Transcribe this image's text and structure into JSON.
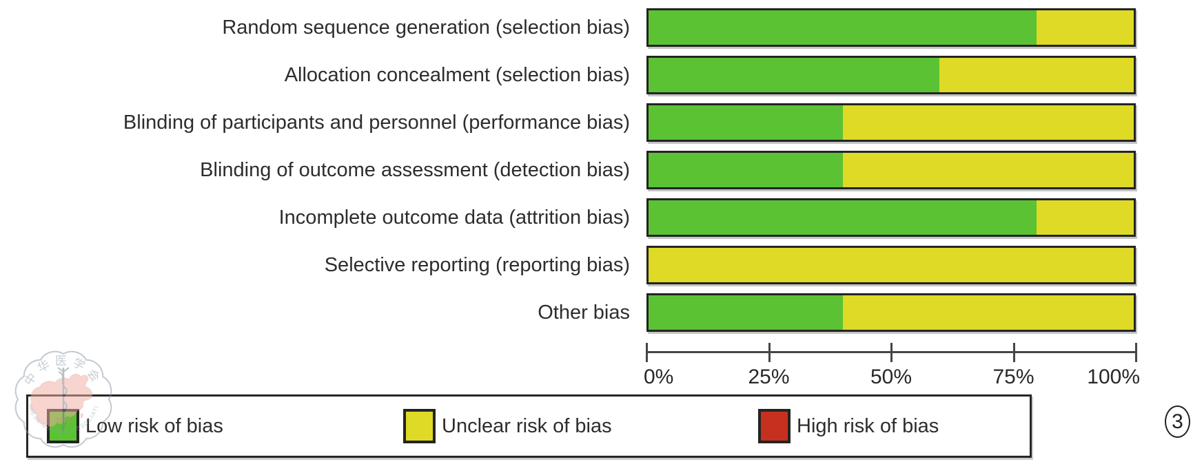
{
  "figure": {
    "number": "3",
    "watermark": {
      "top_text": "中华医学会",
      "bottom_text": "CHINESE MEDICAL ASSOCIATION",
      "year": "1915"
    }
  },
  "chart_data": {
    "type": "bar",
    "orientation": "horizontal-stacked",
    "unit": "percent",
    "xlim": [
      0,
      100
    ],
    "x_ticks": [
      "0%",
      "25%",
      "50%",
      "75%",
      "100%"
    ],
    "grid": false,
    "legend_position": "bottom",
    "categories": [
      "Random sequence generation (selection bias)",
      "Allocation concealment (selection bias)",
      "Blinding of participants and personnel (performance bias)",
      "Blinding of outcome assessment (detection bias)",
      "Incomplete outcome data (attrition bias)",
      "Selective reporting (reporting bias)",
      "Other bias"
    ],
    "series": [
      {
        "name": "Low risk of bias",
        "color": "#5BC234",
        "values": [
          80,
          60,
          40,
          40,
          80,
          0,
          40
        ]
      },
      {
        "name": "Unclear risk of bias",
        "color": "#DEDA26",
        "values": [
          20,
          40,
          60,
          60,
          20,
          100,
          60
        ]
      },
      {
        "name": "High risk of bias",
        "color": "#C6311F",
        "values": [
          0,
          0,
          0,
          0,
          0,
          0,
          0
        ]
      }
    ],
    "legend": [
      {
        "label": "Low risk of bias",
        "color": "#5BC234"
      },
      {
        "label": "Unclear risk of bias",
        "color": "#DEDA26"
      },
      {
        "label": "High risk of bias",
        "color": "#C6311F"
      }
    ]
  }
}
